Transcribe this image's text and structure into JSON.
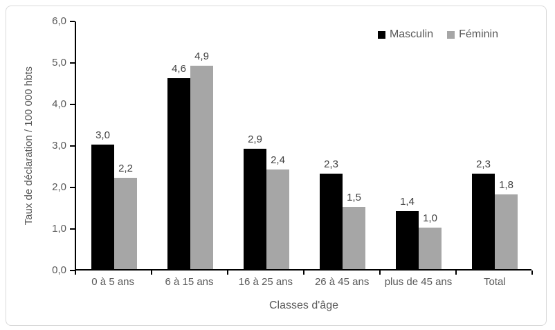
{
  "chart_data": {
    "type": "bar",
    "title": "",
    "xlabel": "Classes d'âge",
    "ylabel": "Taux de déclaration / 100 000 hbts",
    "categories": [
      "0 à 5 ans",
      "6 à 15 ans",
      "16 à 25 ans",
      "26 à 45 ans",
      "plus de 45 ans",
      "Total"
    ],
    "series": [
      {
        "name": "Masculin",
        "color": "#000000",
        "values": [
          3.0,
          4.6,
          2.9,
          2.3,
          1.4,
          2.3
        ],
        "labels": [
          "3,0",
          "4,6",
          "2,9",
          "2,3",
          "1,4",
          "2,3"
        ]
      },
      {
        "name": "Féminin",
        "color": "#a6a6a6",
        "values": [
          2.2,
          4.9,
          2.4,
          1.5,
          1.0,
          1.8
        ],
        "labels": [
          "2,2",
          "4,9",
          "2,4",
          "1,5",
          "1,0",
          "1,8"
        ]
      }
    ],
    "ylim": [
      0,
      6
    ],
    "y_tick_step": 1,
    "y_ticks": [
      "0,0",
      "1,0",
      "2,0",
      "3,0",
      "4,0",
      "5,0",
      "6,0"
    ],
    "grid": false,
    "legend_position": "top-right",
    "colors": {
      "axis": "#000000",
      "axis_text": "#595959",
      "data_label_text": "#404040",
      "frame_border": "#d9d9d9",
      "background": "#ffffff"
    }
  }
}
